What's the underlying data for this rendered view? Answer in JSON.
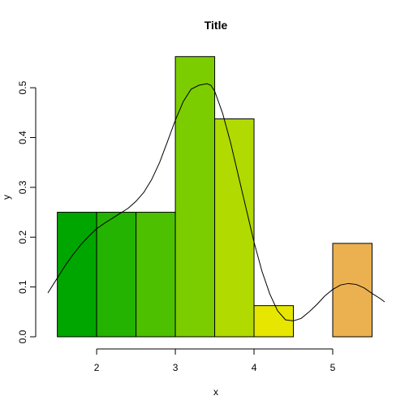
{
  "chart_data": {
    "type": "bar",
    "title": "Title",
    "xlabel": "x",
    "ylabel": "y",
    "xlim": [
      1.38,
      5.66
    ],
    "ylim": [
      0,
      0.58
    ],
    "x_ticks": [
      2,
      3,
      4,
      5
    ],
    "x_tick_labels": [
      "2",
      "3",
      "4",
      "5"
    ],
    "y_ticks": [
      0.0,
      0.1,
      0.2,
      0.3,
      0.4,
      0.5
    ],
    "y_tick_labels": [
      "0.0",
      "0.1",
      "0.2",
      "0.3",
      "0.4",
      "0.5"
    ],
    "grid": false,
    "bins": [
      {
        "x0": 1.5,
        "x1": 2.0,
        "value": 0.25,
        "color": "#00a600"
      },
      {
        "x0": 2.0,
        "x1": 2.5,
        "value": 0.25,
        "color": "#24b300"
      },
      {
        "x0": 2.5,
        "x1": 3.0,
        "value": 0.25,
        "color": "#4dc000"
      },
      {
        "x0": 3.0,
        "x1": 3.5,
        "value": 0.5625,
        "color": "#7ccd00"
      },
      {
        "x0": 3.5,
        "x1": 4.0,
        "value": 0.4375,
        "color": "#b0da00"
      },
      {
        "x0": 4.0,
        "x1": 4.5,
        "value": 0.0625,
        "color": "#e6e600"
      },
      {
        "x0": 4.5,
        "x1": 5.0,
        "value": 0.0,
        "color": "#e8c32e"
      },
      {
        "x0": 5.0,
        "x1": 5.5,
        "value": 0.1875,
        "color": "#ebb150"
      }
    ],
    "density_curve": {
      "x": [
        1.38,
        1.5,
        1.6,
        1.7,
        1.8,
        1.9,
        2.0,
        2.1,
        2.2,
        2.3,
        2.4,
        2.5,
        2.6,
        2.7,
        2.8,
        2.9,
        3.0,
        3.1,
        3.2,
        3.3,
        3.4,
        3.45,
        3.5,
        3.6,
        3.7,
        3.8,
        3.9,
        4.0,
        4.1,
        4.2,
        4.3,
        4.4,
        4.5,
        4.6,
        4.7,
        4.8,
        4.9,
        5.0,
        5.1,
        5.2,
        5.3,
        5.4,
        5.5,
        5.6,
        5.66
      ],
      "y": [
        0.088,
        0.118,
        0.143,
        0.165,
        0.185,
        0.202,
        0.217,
        0.228,
        0.238,
        0.248,
        0.258,
        0.272,
        0.29,
        0.316,
        0.35,
        0.392,
        0.435,
        0.472,
        0.497,
        0.505,
        0.508,
        0.505,
        0.493,
        0.449,
        0.391,
        0.324,
        0.257,
        0.19,
        0.132,
        0.086,
        0.052,
        0.034,
        0.032,
        0.037,
        0.05,
        0.065,
        0.082,
        0.095,
        0.104,
        0.107,
        0.105,
        0.098,
        0.087,
        0.077,
        0.07
      ]
    }
  }
}
